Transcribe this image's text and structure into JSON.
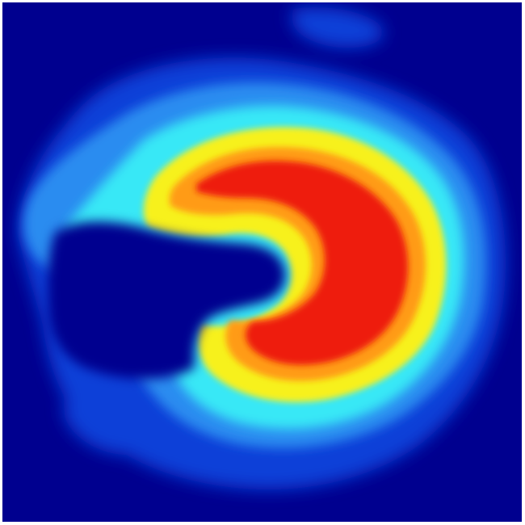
{
  "image": {
    "kind": "heatmap",
    "colormap": "jet",
    "colors": {
      "background": "#00008f",
      "blue": "#0a3fd8",
      "light_blue": "#2a8cf0",
      "cyan": "#37e8f6",
      "yellow": "#f7f11e",
      "orange": "#ff9b12",
      "red": "#ee1b0c"
    }
  }
}
